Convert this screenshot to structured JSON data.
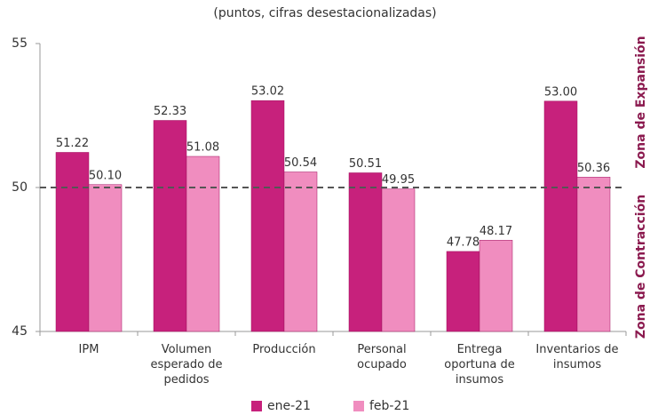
{
  "chart_data": {
    "type": "bar",
    "title": "(puntos, cifras desestacionalizadas)",
    "categories": [
      "IPM",
      "Volumen esperado de pedidos",
      "Producción",
      "Personal ocupado",
      "Entrega oportuna de insumos",
      "Inventarios de insumos"
    ],
    "series": [
      {
        "name": "ene-21",
        "color": "#c7217c",
        "values": [
          51.22,
          52.33,
          53.02,
          50.51,
          47.78,
          53.0
        ],
        "value_labels": [
          "51.22",
          "52.33",
          "53.02",
          "50.51",
          "47.78",
          "53.00"
        ]
      },
      {
        "name": "feb-21",
        "color": "#f08dbf",
        "values": [
          50.1,
          51.08,
          50.54,
          49.95,
          48.17,
          50.36
        ],
        "value_labels": [
          "50.10",
          "51.08",
          "50.54",
          "49.95",
          "48.17",
          "50.36"
        ]
      }
    ],
    "ylim": [
      45,
      55
    ],
    "yticks": [
      45,
      50,
      55
    ],
    "reference_line": 50,
    "zone_labels": {
      "upper": "Zona de Expansión",
      "lower": "Zona de Contracción"
    },
    "legend": "bottom"
  }
}
